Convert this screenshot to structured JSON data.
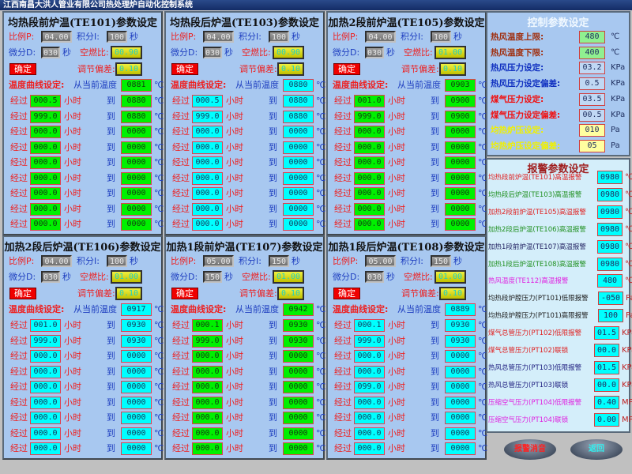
{
  "app_title": "江西南昌大洪人管业有限公司热处理炉自动化控制系统",
  "labels": {
    "p": "比例P:",
    "i": "积分I:",
    "sec": "秒",
    "d": "微分D:",
    "ratio": "空燃比:",
    "confirm": "确定",
    "bias": "调节偏差:",
    "curve": "温度曲线设定:",
    "from": "从当前温度",
    "pass": "经过",
    "hours": "小时",
    "to": "到",
    "deg": "℃"
  },
  "panels": [
    {
      "title": "均热段前炉温(TE101)参数设定",
      "theme": "green",
      "p": "04.00",
      "i": "100",
      "d": "030",
      "ratio": "00.90",
      "bias": "0.10",
      "current_temp": "0881",
      "rows": [
        {
          "hours": "000.5",
          "temp": "0880"
        },
        {
          "hours": "999.0",
          "temp": "0880"
        },
        {
          "hours": "000.0",
          "temp": "0000"
        },
        {
          "hours": "000.0",
          "temp": "0000"
        },
        {
          "hours": "000.0",
          "temp": "0000"
        },
        {
          "hours": "000.0",
          "temp": "0000"
        },
        {
          "hours": "000.0",
          "temp": "0000"
        },
        {
          "hours": "000.0",
          "temp": "0000"
        },
        {
          "hours": "000.0",
          "temp": "0000"
        }
      ]
    },
    {
      "title": "均热段后炉温(TE103)参数设定",
      "theme": "cyan",
      "p": "04.00",
      "i": "100",
      "d": "030",
      "ratio": "00.90",
      "bias": "0.10",
      "current_temp": "0880",
      "rows": [
        {
          "hours": "000.5",
          "temp": "0880"
        },
        {
          "hours": "999.0",
          "temp": "0880"
        },
        {
          "hours": "000.0",
          "temp": "0000"
        },
        {
          "hours": "000.0",
          "temp": "0000"
        },
        {
          "hours": "000.0",
          "temp": "0000"
        },
        {
          "hours": "000.0",
          "temp": "0000"
        },
        {
          "hours": "000.0",
          "temp": "0000"
        },
        {
          "hours": "000.0",
          "temp": "0000"
        },
        {
          "hours": "000.0",
          "temp": "0000"
        }
      ]
    },
    {
      "title": "加热2段前炉温(TE105)参数设定",
      "theme": "green",
      "p": "04.00",
      "i": "100",
      "d": "030",
      "ratio": "01.00",
      "bias": "0.10",
      "current_temp": "0903",
      "rows": [
        {
          "hours": "001.0",
          "temp": "0900"
        },
        {
          "hours": "999.0",
          "temp": "0900"
        },
        {
          "hours": "000.0",
          "temp": "0000"
        },
        {
          "hours": "000.0",
          "temp": "0000"
        },
        {
          "hours": "000.0",
          "temp": "0000"
        },
        {
          "hours": "000.0",
          "temp": "0000"
        },
        {
          "hours": "000.0",
          "temp": "0000"
        },
        {
          "hours": "000.0",
          "temp": "0000"
        },
        {
          "hours": "000.0",
          "temp": "0000"
        }
      ]
    },
    {
      "title": "加热2段后炉温(TE106)参数设定",
      "theme": "cyan",
      "p": "04.00",
      "i": "100",
      "d": "030",
      "ratio": "01.00",
      "bias": "0.10",
      "current_temp": "0917",
      "rows": [
        {
          "hours": "001.0",
          "temp": "0930"
        },
        {
          "hours": "999.0",
          "temp": "0930"
        },
        {
          "hours": "000.0",
          "temp": "0000"
        },
        {
          "hours": "000.0",
          "temp": "0000"
        },
        {
          "hours": "000.0",
          "temp": "0000"
        },
        {
          "hours": "000.0",
          "temp": "0000"
        },
        {
          "hours": "000.0",
          "temp": "0000"
        },
        {
          "hours": "000.0",
          "temp": "0000"
        },
        {
          "hours": "000.0",
          "temp": "0000"
        }
      ]
    },
    {
      "title": "加热1段前炉温(TE107)参数设定",
      "theme": "green",
      "p": "05.00",
      "i": "150",
      "d": "150",
      "ratio": "01.00",
      "bias": "0.10",
      "current_temp": "0942",
      "rows": [
        {
          "hours": "000.1",
          "temp": "0930"
        },
        {
          "hours": "999.0",
          "temp": "0930"
        },
        {
          "hours": "000.0",
          "temp": "0000"
        },
        {
          "hours": "000.0",
          "temp": "0000"
        },
        {
          "hours": "000.0",
          "temp": "0000"
        },
        {
          "hours": "000.0",
          "temp": "0000"
        },
        {
          "hours": "000.0",
          "temp": "0000"
        },
        {
          "hours": "000.0",
          "temp": "0000"
        },
        {
          "hours": "000.0",
          "temp": "0000"
        }
      ]
    },
    {
      "title": "加热1段后炉温(TE108)参数设定",
      "theme": "cyan",
      "p": "05.00",
      "i": "150",
      "d": "030",
      "ratio": "01.00",
      "bias": "0.10",
      "current_temp": "0889",
      "rows": [
        {
          "hours": "000.1",
          "temp": "0930"
        },
        {
          "hours": "999.0",
          "temp": "0930"
        },
        {
          "hours": "000.0",
          "temp": "0000"
        },
        {
          "hours": "000.0",
          "temp": "0000"
        },
        {
          "hours": "099.0",
          "temp": "0000"
        },
        {
          "hours": "000.0",
          "temp": "0000"
        },
        {
          "hours": "000.0",
          "temp": "0000"
        },
        {
          "hours": "000.0",
          "temp": "0000"
        },
        {
          "hours": "000.0",
          "temp": "0000"
        }
      ]
    }
  ],
  "control": {
    "title": "控制参数设定",
    "items": [
      {
        "label": "热风温度上限:",
        "value": "480",
        "unit": "℃",
        "color": "#a03010",
        "box": "#90f090"
      },
      {
        "label": "热风温度下限:",
        "value": "400",
        "unit": "℃",
        "color": "#a03010",
        "box": "#90f090"
      },
      {
        "label": "热风压力设定:",
        "value": "03.2",
        "unit": "KPa",
        "color": "#1030c0",
        "box": "#c0d8f4"
      },
      {
        "label": "热风压力设定偏差:",
        "value": "0.5",
        "unit": "KPa",
        "color": "#1030c0",
        "box": "#c0d8f4"
      },
      {
        "label": "煤气压力设定:",
        "value": "03.5",
        "unit": "KPa",
        "color": "#f01010",
        "box": "#c0d8f4"
      },
      {
        "label": "煤气压力设定偏差:",
        "value": "00.5",
        "unit": "KPa",
        "color": "#f01010",
        "box": "#c0d8f4"
      },
      {
        "label": "均热炉压设定:",
        "value": "010",
        "unit": "Pa",
        "color": "#f0f000",
        "box": "#ffffa0"
      },
      {
        "label": "均热炉压设定偏差:",
        "value": "05",
        "unit": "Pa",
        "color": "#f0f000",
        "box": "#ffffa0"
      }
    ]
  },
  "alarm": {
    "title": "报警参数设定",
    "items": [
      {
        "label": "均热段前炉温(TE101)高温报警",
        "value": "0980",
        "unit": "℃",
        "color": "#e02020"
      },
      {
        "label": "均热段后炉温(TE103)高温报警",
        "value": "0980",
        "unit": "℃",
        "color": "#209020"
      },
      {
        "label": "加热2段前炉温(TE105)高温报警",
        "value": "0980",
        "unit": "℃",
        "color": "#e02020"
      },
      {
        "label": "加热2段后炉温(TE106)高温报警",
        "value": "0980",
        "unit": "℃",
        "color": "#209020"
      },
      {
        "label": "加热1段前炉温(TE107)高温报警",
        "value": "0980",
        "unit": "℃",
        "color": "#202060"
      },
      {
        "label": "加热1段后炉温(TE108)高温报警",
        "value": "0980",
        "unit": "℃",
        "color": "#209020"
      },
      {
        "label": "热风温度(TE112)高温报警",
        "value": "480",
        "unit": "℃",
        "color": "#e020e0"
      },
      {
        "label": "均热段炉膛压力(PT101)低限报警",
        "value": "-050",
        "unit": "Pa",
        "color": "#202020"
      },
      {
        "label": "均热段炉膛压力(PT101)高限报警",
        "value": "100",
        "unit": "Pa",
        "color": "#202020"
      },
      {
        "label": "煤气总管压力(PT102)低限报警",
        "value": "01.5",
        "unit": "KPa",
        "color": "#e02020"
      },
      {
        "label": "煤气总管压力(PT102)联锁",
        "value": "00.0",
        "unit": "KPa",
        "color": "#e02020"
      },
      {
        "label": "热风总管压力(PT103)低限报警",
        "value": "01.5",
        "unit": "KPa",
        "color": "#202080"
      },
      {
        "label": "热风总管压力(PT103)联锁",
        "value": "00.0",
        "unit": "KPa",
        "color": "#202080"
      },
      {
        "label": "压缩空气压力(PT104)低限报警",
        "value": "0.40",
        "unit": "MPa",
        "color": "#e020e0"
      },
      {
        "label": "压缩空气压力(PT104)联锁",
        "value": "0.00",
        "unit": "MPa",
        "color": "#e020e0"
      }
    ]
  },
  "buttons": {
    "mute": "报警消音",
    "back": "返回"
  }
}
